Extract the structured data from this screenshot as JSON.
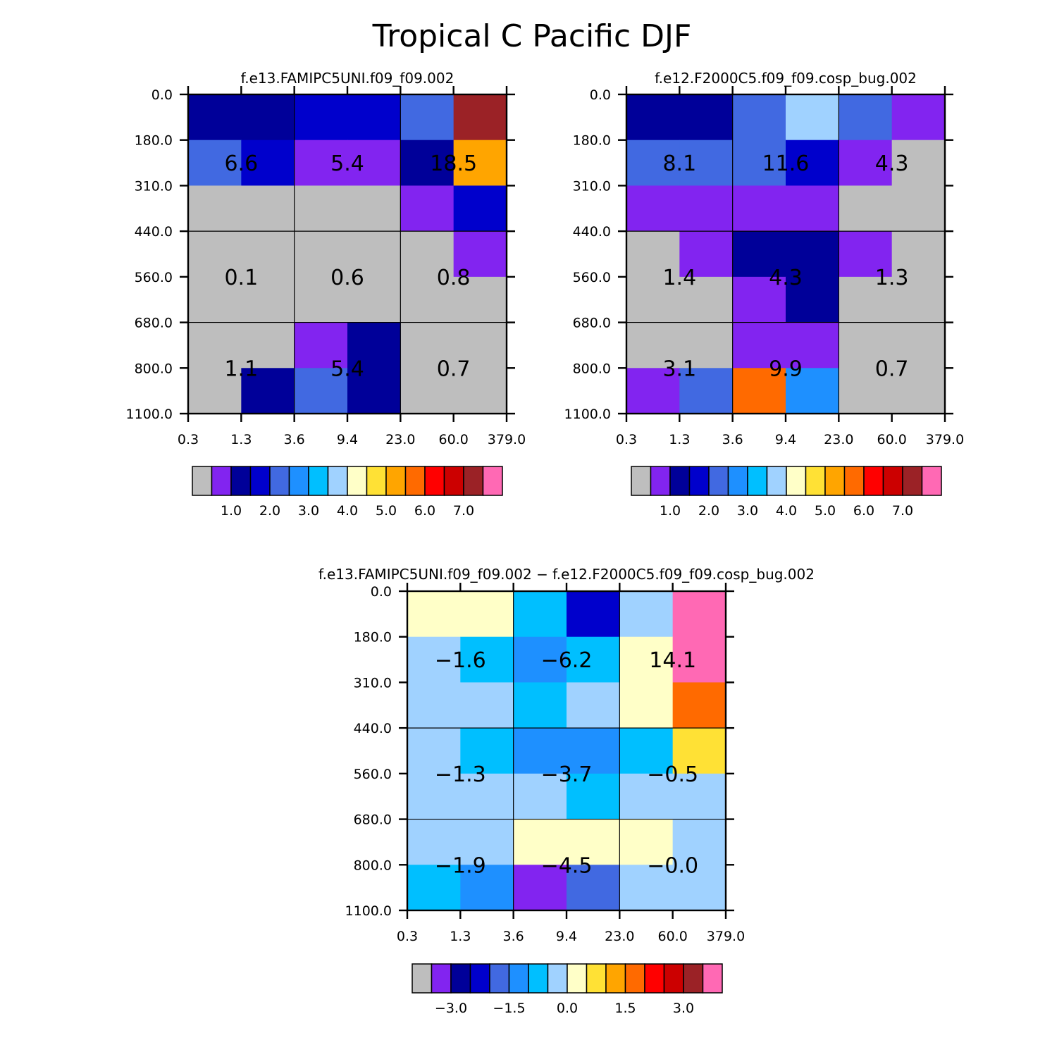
{
  "figure_title": "Tropical C Pacific DJF",
  "chart_data": [
    {
      "type": "heatmap",
      "title": "f.e13.FAMIPC5UNI.f09_f09.002",
      "x_ticks": [
        "0.3",
        "1.3",
        "3.6",
        "9.4",
        "23.0",
        "60.0",
        "379.0"
      ],
      "y_ticks": [
        "0.0",
        "180.0",
        "310.0",
        "440.0",
        "560.0",
        "680.0",
        "800.0",
        "1100.0"
      ],
      "cell_colors": [
        [
          "#000099",
          "#000099",
          "#0000CC",
          "#0000CC",
          "#4169E1",
          "#9B2226"
        ],
        [
          "#4169E1",
          "#0000CC",
          "#8224F0",
          "#8224F0",
          "#000099",
          "#FFA500"
        ],
        [
          "#BEBEBE",
          "#BEBEBE",
          "#BEBEBE",
          "#BEBEBE",
          "#8224F0",
          "#0000CC"
        ],
        [
          "#BEBEBE",
          "#BEBEBE",
          "#BEBEBE",
          "#BEBEBE",
          "#BEBEBE",
          "#8224F0"
        ],
        [
          "#BEBEBE",
          "#BEBEBE",
          "#BEBEBE",
          "#BEBEBE",
          "#BEBEBE",
          "#BEBEBE"
        ],
        [
          "#BEBEBE",
          "#BEBEBE",
          "#8224F0",
          "#000099",
          "#BEBEBE",
          "#BEBEBE"
        ],
        [
          "#BEBEBE",
          "#000099",
          "#4169E1",
          "#000099",
          "#BEBEBE",
          "#BEBEBE"
        ]
      ],
      "block_labels": [
        [
          "6.6",
          "5.4",
          "18.5"
        ],
        [
          "0.1",
          "0.6",
          "0.8"
        ],
        [
          "1.1",
          "5.4",
          "0.7"
        ]
      ],
      "colorbar": {
        "colors": [
          "#BEBEBE",
          "#8224F0",
          "#000099",
          "#0000CC",
          "#4169E1",
          "#1E90FF",
          "#00BFFF",
          "#A0D2FF",
          "#FFFFC8",
          "#FFE135",
          "#FFA500",
          "#FF6A00",
          "#FF0000",
          "#CC0000",
          "#9B2226",
          "#FF69B4"
        ],
        "labels": [
          "1.0",
          "2.0",
          "3.0",
          "4.0",
          "5.0",
          "6.0",
          "7.0"
        ]
      }
    },
    {
      "type": "heatmap",
      "title": "f.e12.F2000C5.f09_f09.cosp_bug.002",
      "x_ticks": [
        "0.3",
        "1.3",
        "3.6",
        "9.4",
        "23.0",
        "60.0",
        "379.0"
      ],
      "y_ticks": [
        "0.0",
        "180.0",
        "310.0",
        "440.0",
        "560.0",
        "680.0",
        "800.0",
        "1100.0"
      ],
      "cell_colors": [
        [
          "#000099",
          "#000099",
          "#4169E1",
          "#A0D2FF",
          "#4169E1",
          "#8224F0"
        ],
        [
          "#4169E1",
          "#4169E1",
          "#4169E1",
          "#0000CC",
          "#8224F0",
          "#BEBEBE"
        ],
        [
          "#8224F0",
          "#8224F0",
          "#8224F0",
          "#8224F0",
          "#BEBEBE",
          "#BEBEBE"
        ],
        [
          "#BEBEBE",
          "#8224F0",
          "#000099",
          "#000099",
          "#8224F0",
          "#BEBEBE"
        ],
        [
          "#BEBEBE",
          "#BEBEBE",
          "#8224F0",
          "#000099",
          "#BEBEBE",
          "#BEBEBE"
        ],
        [
          "#BEBEBE",
          "#BEBEBE",
          "#8224F0",
          "#8224F0",
          "#BEBEBE",
          "#BEBEBE"
        ],
        [
          "#8224F0",
          "#4169E1",
          "#FF6A00",
          "#1E90FF",
          "#BEBEBE",
          "#BEBEBE"
        ]
      ],
      "block_labels": [
        [
          "8.1",
          "11.6",
          "4.3"
        ],
        [
          "1.4",
          "4.3",
          "1.3"
        ],
        [
          "3.1",
          "9.9",
          "0.7"
        ]
      ],
      "colorbar": {
        "colors": [
          "#BEBEBE",
          "#8224F0",
          "#000099",
          "#0000CC",
          "#4169E1",
          "#1E90FF",
          "#00BFFF",
          "#A0D2FF",
          "#FFFFC8",
          "#FFE135",
          "#FFA500",
          "#FF6A00",
          "#FF0000",
          "#CC0000",
          "#9B2226",
          "#FF69B4"
        ],
        "labels": [
          "1.0",
          "2.0",
          "3.0",
          "4.0",
          "5.0",
          "6.0",
          "7.0"
        ]
      }
    },
    {
      "type": "heatmap",
      "title": "f.e13.FAMIPC5UNI.f09_f09.002 − f.e12.F2000C5.f09_f09.cosp_bug.002",
      "x_ticks": [
        "0.3",
        "1.3",
        "3.6",
        "9.4",
        "23.0",
        "60.0",
        "379.0"
      ],
      "y_ticks": [
        "0.0",
        "180.0",
        "310.0",
        "440.0",
        "560.0",
        "680.0",
        "800.0",
        "1100.0"
      ],
      "cell_colors": [
        [
          "#FFFFC8",
          "#FFFFC8",
          "#00BFFF",
          "#0000CC",
          "#A0D2FF",
          "#FF69B4"
        ],
        [
          "#A0D2FF",
          "#00BFFF",
          "#1E90FF",
          "#00BFFF",
          "#FFFFC8",
          "#FF69B4"
        ],
        [
          "#A0D2FF",
          "#A0D2FF",
          "#00BFFF",
          "#A0D2FF",
          "#FFFFC8",
          "#FF6A00"
        ],
        [
          "#A0D2FF",
          "#00BFFF",
          "#1E90FF",
          "#1E90FF",
          "#00BFFF",
          "#FFE135"
        ],
        [
          "#A0D2FF",
          "#A0D2FF",
          "#A0D2FF",
          "#00BFFF",
          "#A0D2FF",
          "#A0D2FF"
        ],
        [
          "#A0D2FF",
          "#A0D2FF",
          "#FFFFC8",
          "#FFFFC8",
          "#FFFFC8",
          "#A0D2FF"
        ],
        [
          "#00BFFF",
          "#1E90FF",
          "#8224F0",
          "#4169E1",
          "#A0D2FF",
          "#A0D2FF"
        ]
      ],
      "block_labels": [
        [
          "−1.6",
          "−6.2",
          "14.1"
        ],
        [
          "−1.3",
          "−3.7",
          "−0.5"
        ],
        [
          "−1.9",
          "−4.5",
          "−0.0"
        ]
      ],
      "colorbar": {
        "colors": [
          "#BEBEBE",
          "#8224F0",
          "#000099",
          "#0000CC",
          "#4169E1",
          "#1E90FF",
          "#00BFFF",
          "#A0D2FF",
          "#FFFFC8",
          "#FFE135",
          "#FFA500",
          "#FF6A00",
          "#FF0000",
          "#CC0000",
          "#9B2226",
          "#FF69B4"
        ],
        "labels": [
          "−3.0",
          "−1.5",
          "0.0",
          "1.5",
          "3.0"
        ]
      }
    }
  ]
}
